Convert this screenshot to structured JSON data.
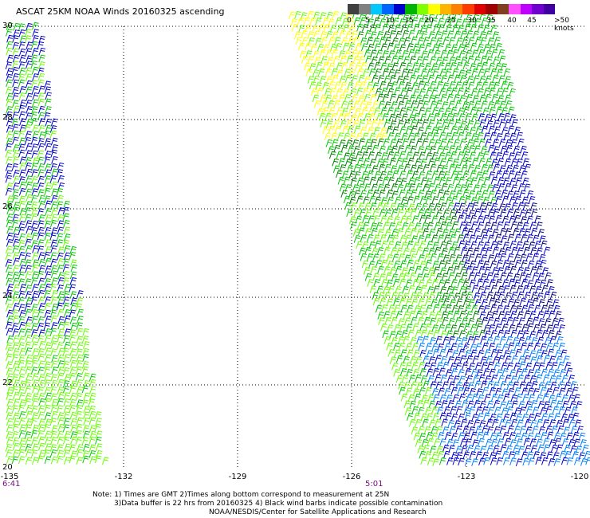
{
  "title": "ASCAT 25KM NOAA Winds 20160325 ascending",
  "color_scale": {
    "labels": [
      "0",
      "5",
      "10",
      "15",
      "20",
      "25",
      "30",
      "35",
      "40",
      "45",
      ">50 knots"
    ],
    "colors": [
      "#404040",
      "#808080",
      "#00c8ff",
      "#0064ff",
      "#0000cc",
      "#00b400",
      "#80ff00",
      "#ffff00",
      "#ffb400",
      "#ff8000",
      "#ff3c00",
      "#e00000",
      "#a00000",
      "#804020",
      "#ff50ff",
      "#c000ff",
      "#7000d0",
      "#4000a0"
    ]
  },
  "lat_labels": [
    "30",
    "28",
    "26",
    "24",
    "22",
    "20"
  ],
  "lon_labels": [
    "-135",
    "-132",
    "-129",
    "-126",
    "-123",
    "-120"
  ],
  "time_labels": {
    "left": "6:41",
    "right": "5:01"
  },
  "notes": {
    "line1": "Note: 1) Times are GMT 2)Times along bottom correspond to measurement at 25N",
    "line2": "3)Data buffer is 22 hrs from 20160325 4) Black wind barbs indicate possible contamination",
    "line3": "NOAA/NESDIS/Center for Satellite Applications and Research"
  },
  "barb_colors": {
    "yellow": "#ffff00",
    "light_green": "#66ff00",
    "green": "#00c800",
    "dark_green": "#008000",
    "blue": "#0000cc",
    "dark_blue": "#000080",
    "light_blue": "#0080ff"
  }
}
